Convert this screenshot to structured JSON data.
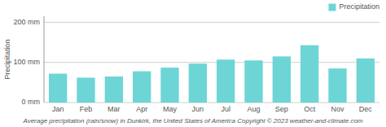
{
  "chart_data": {
    "type": "bar",
    "title": "Average precipitation (rain/snow) in Dunkirk, the United States of America   Copyright © 2023  weather-and-climate.com",
    "y_label": "Precipitation",
    "categories": [
      "Jan",
      "Feb",
      "Mar",
      "Apr",
      "May",
      "Jun",
      "Jul",
      "Aug",
      "Sep",
      "Oct",
      "Nov",
      "Dec"
    ],
    "series": [
      {
        "name": "Precipitation",
        "color": "#6dd5d5",
        "values": [
          72,
          62,
          65,
          78,
          87,
          97,
          107,
          105,
          115,
          143,
          85,
          110
        ]
      }
    ],
    "ylim": [
      0,
      215
    ],
    "yticks": [
      {
        "value": 0,
        "label": "0 mm"
      },
      {
        "value": 100,
        "label": "100 mm"
      },
      {
        "value": 200,
        "label": "200 mm"
      }
    ],
    "grid": true,
    "legend": "upper right"
  }
}
